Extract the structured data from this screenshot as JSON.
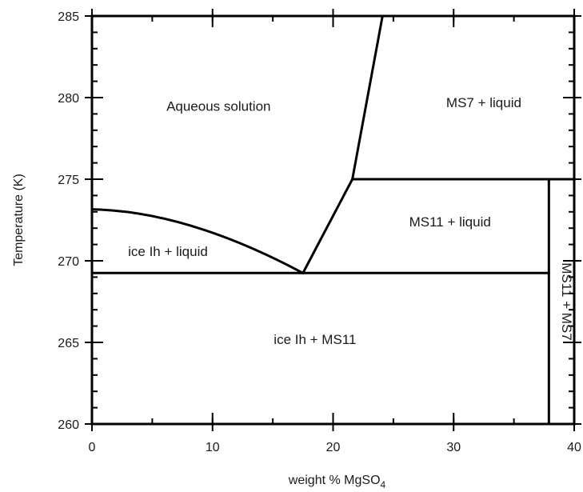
{
  "chart_data": {
    "type": "phase-diagram",
    "xlabel": "weight % MgSO",
    "xlabel_sub": "4",
    "ylabel": "Temperature (K)",
    "xlim": [
      0,
      40
    ],
    "ylim": [
      260,
      285
    ],
    "x_ticks": [
      0,
      10,
      20,
      30,
      40
    ],
    "y_ticks": [
      260,
      265,
      270,
      275,
      280,
      285
    ],
    "x_minor_step": 5,
    "y_minor_step": 1,
    "grid": false,
    "boundaries": [
      {
        "name": "ice-liquidus",
        "x": [
          0,
          17.5
        ],
        "y": [
          273.15,
          269.25
        ],
        "shape": "curve"
      },
      {
        "name": "ms11-liquidus",
        "x": [
          17.5,
          21.6
        ],
        "y": [
          269.25,
          275.0
        ]
      },
      {
        "name": "ms7-liquidus",
        "x": [
          21.6,
          24.1
        ],
        "y": [
          275.0,
          285
        ]
      },
      {
        "name": "eutectic-line",
        "x": [
          0,
          37.9
        ],
        "y": [
          269.25,
          269.25
        ]
      },
      {
        "name": "peritectic-line",
        "x": [
          21.6,
          40
        ],
        "y": [
          275.0,
          275.0
        ]
      },
      {
        "name": "ms11-composition-line",
        "x": [
          37.9,
          37.9
        ],
        "y": [
          260,
          275.0
        ]
      }
    ],
    "regions": [
      {
        "label": "Aqueous solution",
        "x": 10.5,
        "y": 279.2
      },
      {
        "label": "MS7 + liquid",
        "x": 32.5,
        "y": 279.4
      },
      {
        "label": "MS11 + liquid",
        "x": 29.7,
        "y": 272.1
      },
      {
        "label": "ice Ih + liquid",
        "x": 6.3,
        "y": 270.3
      },
      {
        "label": "ice Ih + MS11",
        "x": 18.5,
        "y": 264.9
      },
      {
        "label": "MS11 + MS7",
        "x": 39.0,
        "y": 267.5,
        "rotated": true
      }
    ]
  }
}
